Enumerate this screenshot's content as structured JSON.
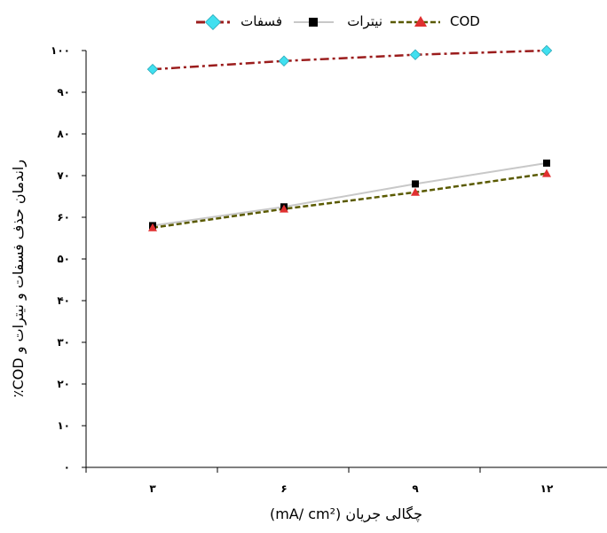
{
  "chart_data": {
    "type": "line",
    "categories": [
      "۳",
      "۶",
      "۹",
      "۱۲"
    ],
    "x": [
      3,
      6,
      9,
      12
    ],
    "xlabel": "چگالی جریان (mA/ cm²)",
    "ylabel": "راندمان حذف فسفات و نیترات و COD٪",
    "ylim": [
      0,
      100
    ],
    "yticks": [
      0,
      10,
      20,
      30,
      40,
      50,
      60,
      70,
      80,
      90,
      100
    ],
    "ytick_labels": [
      "۰",
      "۱۰",
      "۲۰",
      "۳۰",
      "۴۰",
      "۵۰",
      "۶۰",
      "۷۰",
      "۸۰",
      "۹۰",
      "۱۰۰"
    ],
    "grid": false,
    "legend_position": "top",
    "series": [
      {
        "name": "فسفات",
        "values": [
          95.5,
          97.5,
          99,
          100
        ],
        "color": "#9b1c1c",
        "marker": "diamond",
        "marker_color": "#40e0f0",
        "line_style": "dash-dot"
      },
      {
        "name": "نیترات",
        "values": [
          58,
          62.5,
          68,
          73
        ],
        "color": "#c8c8c8",
        "marker": "square",
        "marker_color": "#000000",
        "line_style": "solid"
      },
      {
        "name": "COD",
        "values": [
          57.5,
          62,
          66,
          70.5
        ],
        "color": "#5a5a00",
        "marker": "triangle",
        "marker_color": "#e03030",
        "line_style": "dashed"
      }
    ]
  }
}
